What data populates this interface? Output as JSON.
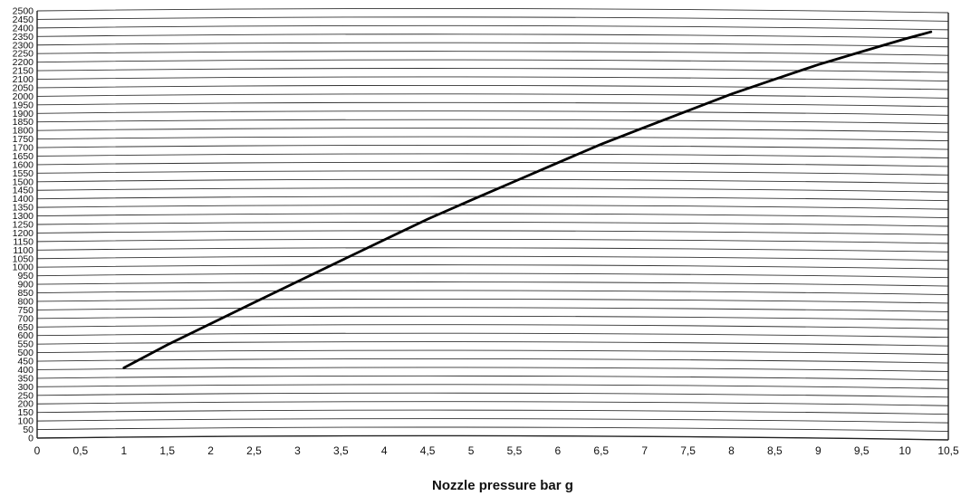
{
  "chart_data": {
    "type": "line",
    "title": "",
    "xlabel": "Nozzle pressure bar g",
    "ylabel": "",
    "xlim": [
      0,
      10.5
    ],
    "ylim": [
      0,
      2500
    ],
    "x_ticks": [
      "0",
      "0,5",
      "1",
      "1,5",
      "2",
      "2,5",
      "3",
      "3,5",
      "4",
      "4,5",
      "5",
      "5,5",
      "6",
      "6,5",
      "7",
      "7,5",
      "8",
      "8,5",
      "9",
      "9,5",
      "10",
      "10,5"
    ],
    "y_ticks": [
      "0",
      "50",
      "100",
      "150",
      "200",
      "250",
      "300",
      "350",
      "400",
      "450",
      "500",
      "550",
      "600",
      "650",
      "700",
      "750",
      "800",
      "850",
      "900",
      "950",
      "1000",
      "1050",
      "1100",
      "1150",
      "1200",
      "1250",
      "1300",
      "1350",
      "1400",
      "1450",
      "1500",
      "1550",
      "1600",
      "1650",
      "1700",
      "1750",
      "1800",
      "1850",
      "1900",
      "1950",
      "2000",
      "2050",
      "2100",
      "2150",
      "2200",
      "2250",
      "2300",
      "2350",
      "2400",
      "2450",
      "2500"
    ],
    "grid": true,
    "series": [
      {
        "x": [
          1.0,
          1.5,
          2.0,
          2.5,
          3.0,
          3.5,
          4.0,
          4.5,
          5.0,
          5.5,
          6.0,
          6.5,
          7.0,
          7.5,
          8.0,
          8.5,
          9.0,
          9.5,
          10.0,
          10.3
        ],
        "y": [
          400,
          530,
          650,
          770,
          890,
          1010,
          1130,
          1250,
          1360,
          1470,
          1580,
          1690,
          1790,
          1890,
          1990,
          2080,
          2170,
          2250,
          2330,
          2375
        ]
      }
    ]
  }
}
